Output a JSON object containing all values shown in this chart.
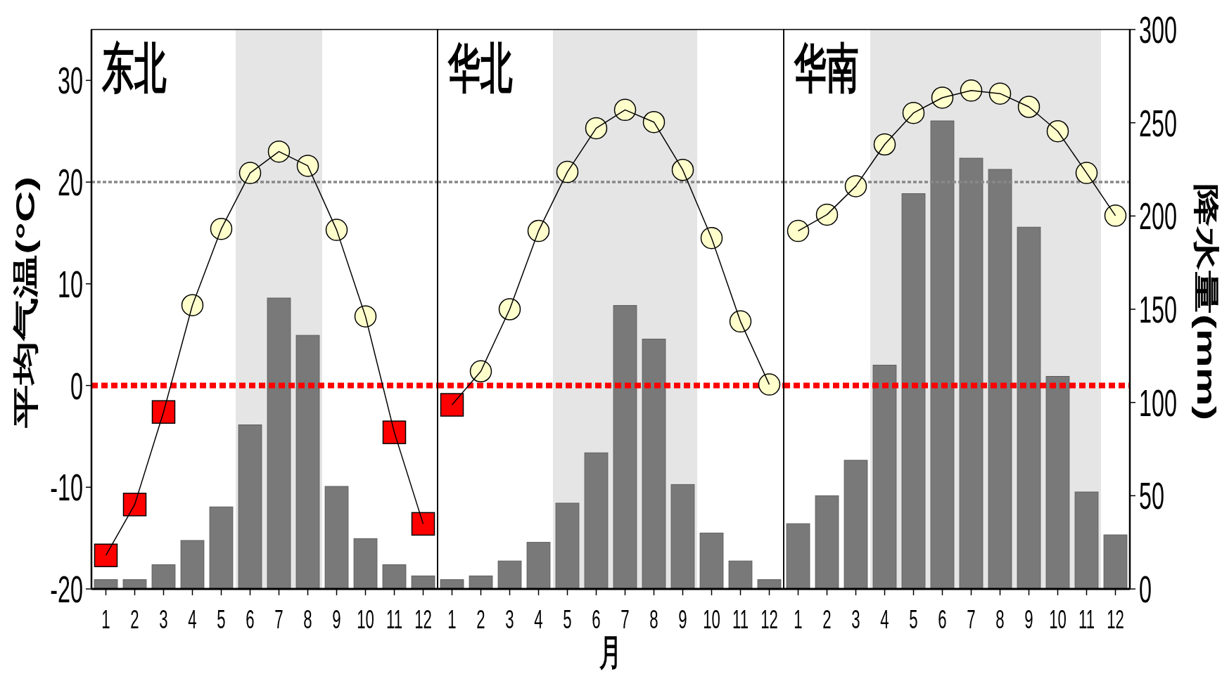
{
  "chart_data": [
    {
      "type": "bar",
      "title": "东北",
      "ylabel": "平均气温(°C)",
      "x": [
        1,
        2,
        3,
        4,
        5,
        6,
        7,
        8,
        9,
        10,
        11,
        12
      ],
      "xlim": [
        0.5,
        12.5
      ],
      "xticks": [
        1,
        2,
        3,
        4,
        5,
        6,
        7,
        8,
        9,
        10,
        11,
        12
      ],
      "ylim": [
        -20,
        35
      ],
      "yticks": [
        -20,
        -10,
        0,
        10,
        20,
        30
      ],
      "y2lim": [
        0,
        300
      ],
      "tick_labels": [
        "x",
        "y"
      ],
      "series": [
        {
          "axis": "y2",
          "color": "#797979",
          "values": [
            5,
            5,
            13,
            26,
            44,
            88,
            156,
            136,
            55,
            27,
            13,
            7
          ]
        },
        {
          "type": "line",
          "color": "#000000",
          "values": [
            -16.7,
            -11.7,
            -2.6,
            7.9,
            15.4,
            20.9,
            23.0,
            21.6,
            15.3,
            6.8,
            -4.6,
            -13.6
          ]
        },
        {
          "type": "scatter",
          "marker": "circle",
          "color": "#ffffcc",
          "values": [
            null,
            null,
            null,
            7.9,
            15.4,
            20.9,
            23.0,
            21.6,
            15.3,
            6.8,
            null,
            null
          ]
        },
        {
          "type": "scatter",
          "marker": "square",
          "color": "#ff0000",
          "values": [
            -16.7,
            -11.7,
            -2.6,
            null,
            null,
            null,
            null,
            null,
            null,
            null,
            -4.6,
            -13.6
          ]
        }
      ],
      "ref_lines": [
        {
          "axis": "y",
          "value": 20,
          "color": "#888888",
          "line_style": "dotted"
        },
        {
          "axis": "y",
          "value": 0,
          "color": "#ff0000",
          "line_style": "dashed"
        }
      ],
      "bands": [
        {
          "axis": "x",
          "from": 5.5,
          "to": 8.5,
          "color": "#e5e5e5"
        }
      ]
    },
    {
      "type": "bar",
      "title": "华北",
      "xlabel": "月",
      "x": [
        1,
        2,
        3,
        4,
        5,
        6,
        7,
        8,
        9,
        10,
        11,
        12
      ],
      "xlim": [
        0.5,
        12.5
      ],
      "xticks": [
        1,
        2,
        3,
        4,
        5,
        6,
        7,
        8,
        9,
        10,
        11,
        12
      ],
      "ylim": [
        -20,
        35
      ],
      "y2lim": [
        0,
        300
      ],
      "tick_labels": [
        "x"
      ],
      "series": [
        {
          "axis": "y2",
          "color": "#797979",
          "values": [
            5,
            7,
            15,
            25,
            46,
            73,
            152,
            134,
            56,
            30,
            15,
            5
          ]
        },
        {
          "type": "line",
          "color": "#000000",
          "values": [
            -1.9,
            1.4,
            7.5,
            15.2,
            21.0,
            25.3,
            27.1,
            25.9,
            21.2,
            14.5,
            6.3,
            0.1
          ]
        },
        {
          "type": "scatter",
          "marker": "circle",
          "color": "#ffffcc",
          "values": [
            null,
            1.4,
            7.5,
            15.2,
            21.0,
            25.3,
            27.1,
            25.9,
            21.2,
            14.5,
            6.3,
            0.1
          ]
        },
        {
          "type": "scatter",
          "marker": "square",
          "color": "#ff0000",
          "values": [
            -1.9,
            null,
            null,
            null,
            null,
            null,
            null,
            null,
            null,
            null,
            null,
            null
          ]
        }
      ],
      "ref_lines": [
        {
          "axis": "y",
          "value": 20,
          "color": "#888888",
          "line_style": "dotted"
        },
        {
          "axis": "y",
          "value": 0,
          "color": "#ff0000",
          "line_style": "dashed"
        }
      ],
      "bands": [
        {
          "axis": "x",
          "from": 4.5,
          "to": 9.5,
          "color": "#e5e5e5"
        }
      ]
    },
    {
      "type": "bar",
      "title": "华南",
      "y2label": "降水量(mm)",
      "x": [
        1,
        2,
        3,
        4,
        5,
        6,
        7,
        8,
        9,
        10,
        11,
        12
      ],
      "xlim": [
        0.5,
        12.5
      ],
      "xticks": [
        1,
        2,
        3,
        4,
        5,
        6,
        7,
        8,
        9,
        10,
        11,
        12
      ],
      "ylim": [
        -20,
        35
      ],
      "y2lim": [
        0,
        300
      ],
      "y2ticks": [
        0,
        50,
        100,
        150,
        200,
        250,
        300
      ],
      "tick_labels": [
        "x",
        "y2"
      ],
      "series": [
        {
          "axis": "y2",
          "color": "#797979",
          "values": [
            35,
            50,
            69,
            120,
            212,
            251,
            231,
            225,
            194,
            114,
            52,
            29
          ]
        },
        {
          "type": "line",
          "color": "#000000",
          "values": [
            15.2,
            16.8,
            19.6,
            23.7,
            26.8,
            28.3,
            29.0,
            28.7,
            27.4,
            25.0,
            20.9,
            16.7
          ]
        },
        {
          "type": "scatter",
          "marker": "circle",
          "color": "#ffffcc",
          "values": [
            15.2,
            16.8,
            19.6,
            23.7,
            26.8,
            28.3,
            29.0,
            28.7,
            27.4,
            25.0,
            20.9,
            16.7
          ]
        }
      ],
      "ref_lines": [
        {
          "axis": "y",
          "value": 20,
          "color": "#888888",
          "line_style": "dotted"
        },
        {
          "axis": "y",
          "value": 0,
          "color": "#ff0000",
          "line_style": "dashed"
        }
      ],
      "bands": [
        {
          "axis": "x",
          "from": 3.5,
          "to": 11.5,
          "color": "#e5e5e5"
        }
      ]
    }
  ]
}
